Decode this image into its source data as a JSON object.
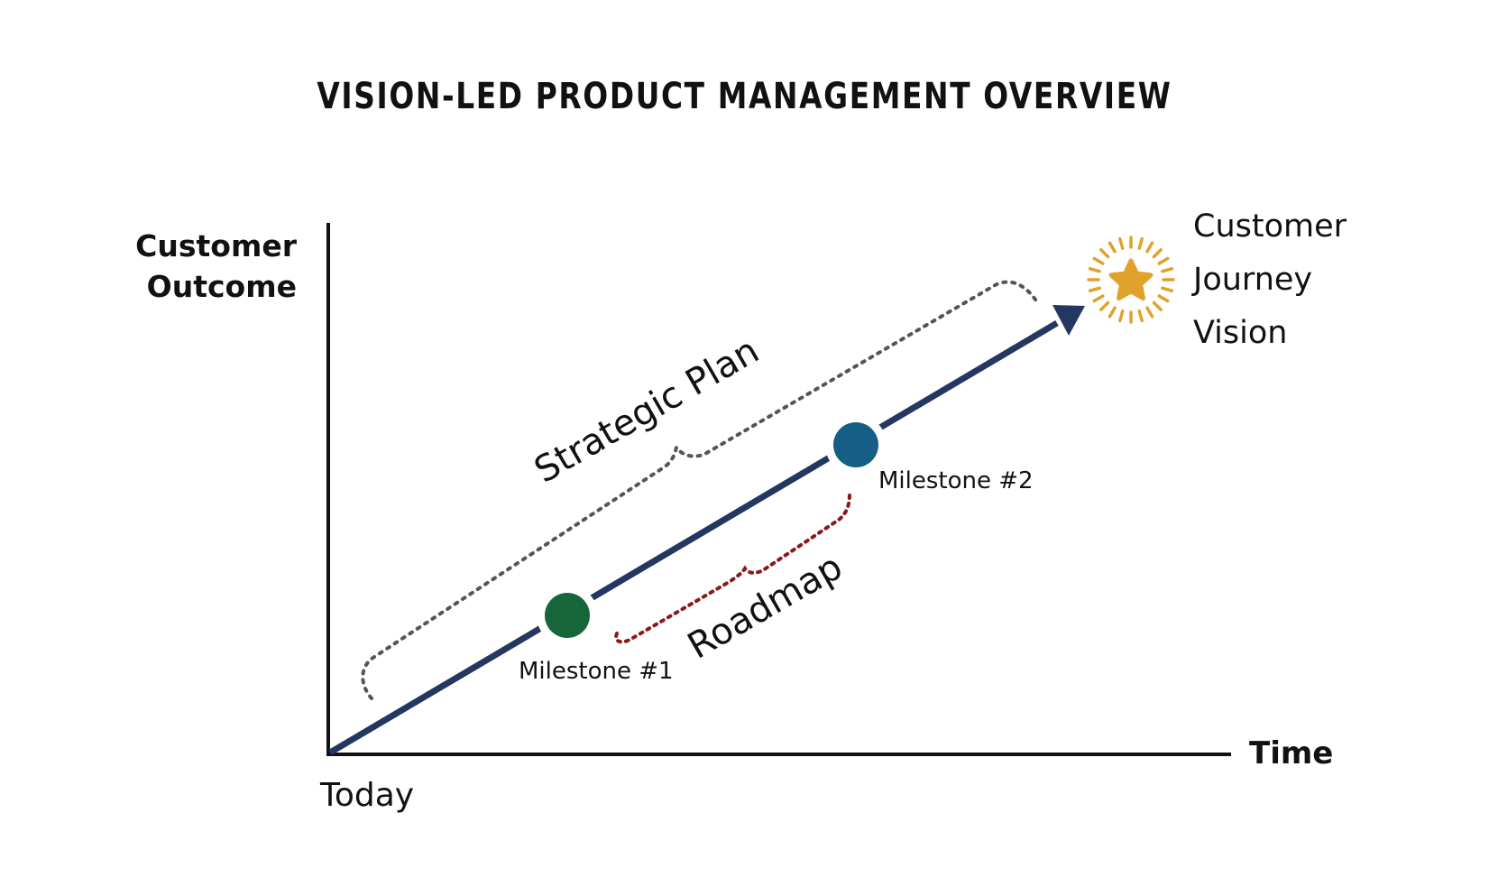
{
  "title": "VISION-LED PRODUCT MANAGEMENT OVERVIEW",
  "axes": {
    "y_label_line1": "Customer",
    "y_label_line2": "Outcome",
    "x_label": "Time",
    "origin_label": "Today"
  },
  "milestones": [
    {
      "label": "Milestone #1",
      "color": "#17663a"
    },
    {
      "label": "Milestone #2",
      "color": "#155e85"
    }
  ],
  "brackets": {
    "strategic_plan": {
      "label": "Strategic Plan",
      "color": "#555555"
    },
    "roadmap": {
      "label": "Roadmap",
      "color": "#8a1a1a"
    }
  },
  "vision": {
    "line1": "Customer",
    "line2": "Journey",
    "line3": "Vision",
    "icon": "star-burst-icon",
    "color": "#e0a22b"
  },
  "colors": {
    "trajectory": "#233760",
    "axis": "#111111"
  }
}
